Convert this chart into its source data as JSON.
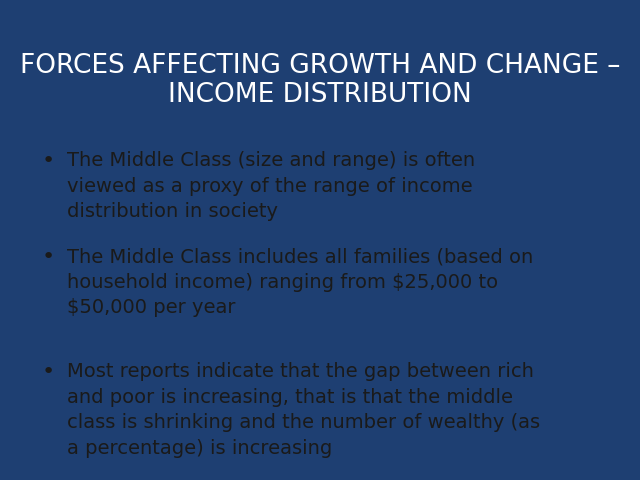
{
  "title_line1": "FORCES AFFECTING GROWTH AND CHANGE –",
  "title_line2": "INCOME DISTRIBUTION",
  "title_bg_color": "#6b8ea6",
  "title_text_color": "#ffffff",
  "body_bg_color": "#f5e6c8",
  "outer_bg_color": "#1e3f72",
  "teal_dark": "#2d9aaa",
  "teal_light": "#7ecece",
  "tan_strip": "#c8b89a",
  "bullet_points": [
    "The Middle Class (size and range) is often\nviewed as a proxy of the range of income\ndistribution in society",
    "The Middle Class includes all families (based on\nhousehold income) ranging from $25,000 to\n$50,000 per year",
    "Most reports indicate that the gap between rich\nand poor is increasing, that is that the middle\nclass is shrinking and the number of wealthy (as\na percentage) is increasing"
  ],
  "bullet_text_color": "#1a1a1a",
  "bullet_font_size": 14.0,
  "title_font_size": 19.0,
  "fig_width": 6.4,
  "fig_height": 4.8,
  "dpi": 100
}
